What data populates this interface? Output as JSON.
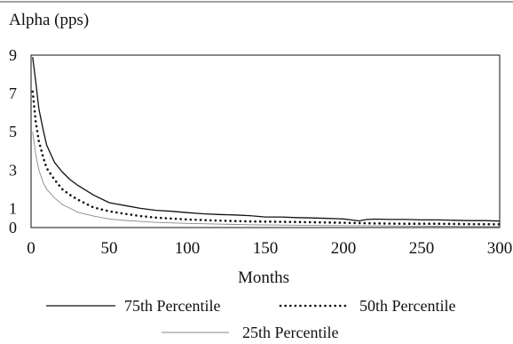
{
  "chart_data": {
    "type": "line",
    "title": "",
    "ylabel": "Alpha (pps)",
    "xlabel": "Months",
    "xlim": [
      0,
      300
    ],
    "ylim": [
      0,
      9
    ],
    "xticks": [
      0,
      50,
      100,
      150,
      200,
      250,
      300
    ],
    "xtick_labels": [
      "0",
      "50",
      "100",
      "150",
      "200",
      "250",
      "300"
    ],
    "yticks": [
      0,
      1,
      3,
      5,
      7,
      9
    ],
    "ytick_labels": [
      "0",
      "1",
      "3",
      "5",
      "7",
      "9"
    ],
    "grid": false,
    "legend_position": "bottom",
    "series": [
      {
        "name": "75th Percentile",
        "style": "solid",
        "color": "#111111",
        "x": [
          1,
          3,
          5,
          8,
          10,
          15,
          20,
          25,
          30,
          40,
          50,
          60,
          70,
          80,
          90,
          100,
          110,
          120,
          130,
          140,
          150,
          160,
          170,
          180,
          190,
          200,
          205,
          210,
          215,
          220,
          230,
          240,
          250,
          260,
          270,
          280,
          290,
          300
        ],
        "values": [
          8.9,
          7.6,
          6.2,
          5.0,
          4.3,
          3.4,
          2.9,
          2.5,
          2.2,
          1.7,
          1.3,
          1.15,
          1.0,
          0.9,
          0.85,
          0.78,
          0.72,
          0.68,
          0.66,
          0.62,
          0.55,
          0.55,
          0.52,
          0.5,
          0.48,
          0.45,
          0.4,
          0.35,
          0.42,
          0.44,
          0.42,
          0.42,
          0.4,
          0.4,
          0.38,
          0.36,
          0.36,
          0.34
        ]
      },
      {
        "name": "50th Percentile",
        "style": "dotted",
        "color": "#111111",
        "x": [
          1,
          3,
          5,
          8,
          10,
          15,
          20,
          25,
          30,
          40,
          50,
          60,
          70,
          80,
          90,
          100,
          120,
          140,
          160,
          180,
          200,
          220,
          240,
          260,
          280,
          300
        ],
        "values": [
          7.1,
          5.5,
          4.5,
          3.6,
          3.1,
          2.5,
          2.0,
          1.7,
          1.45,
          1.05,
          0.85,
          0.72,
          0.6,
          0.52,
          0.47,
          0.42,
          0.36,
          0.32,
          0.3,
          0.28,
          0.25,
          0.22,
          0.2,
          0.2,
          0.18,
          0.17
        ]
      },
      {
        "name": "25th Percentile",
        "style": "thin",
        "color": "#888888",
        "x": [
          1,
          3,
          5,
          8,
          10,
          15,
          20,
          25,
          30,
          40,
          50,
          60,
          70,
          80,
          100,
          120,
          140,
          160,
          180,
          200,
          220,
          240,
          260,
          280,
          300
        ],
        "values": [
          5.0,
          3.8,
          3.0,
          2.3,
          2.0,
          1.55,
          1.2,
          1.0,
          0.8,
          0.6,
          0.45,
          0.37,
          0.32,
          0.27,
          0.22,
          0.18,
          0.15,
          0.13,
          0.11,
          0.1,
          0.09,
          0.08,
          0.07,
          0.06,
          0.05
        ]
      }
    ]
  }
}
